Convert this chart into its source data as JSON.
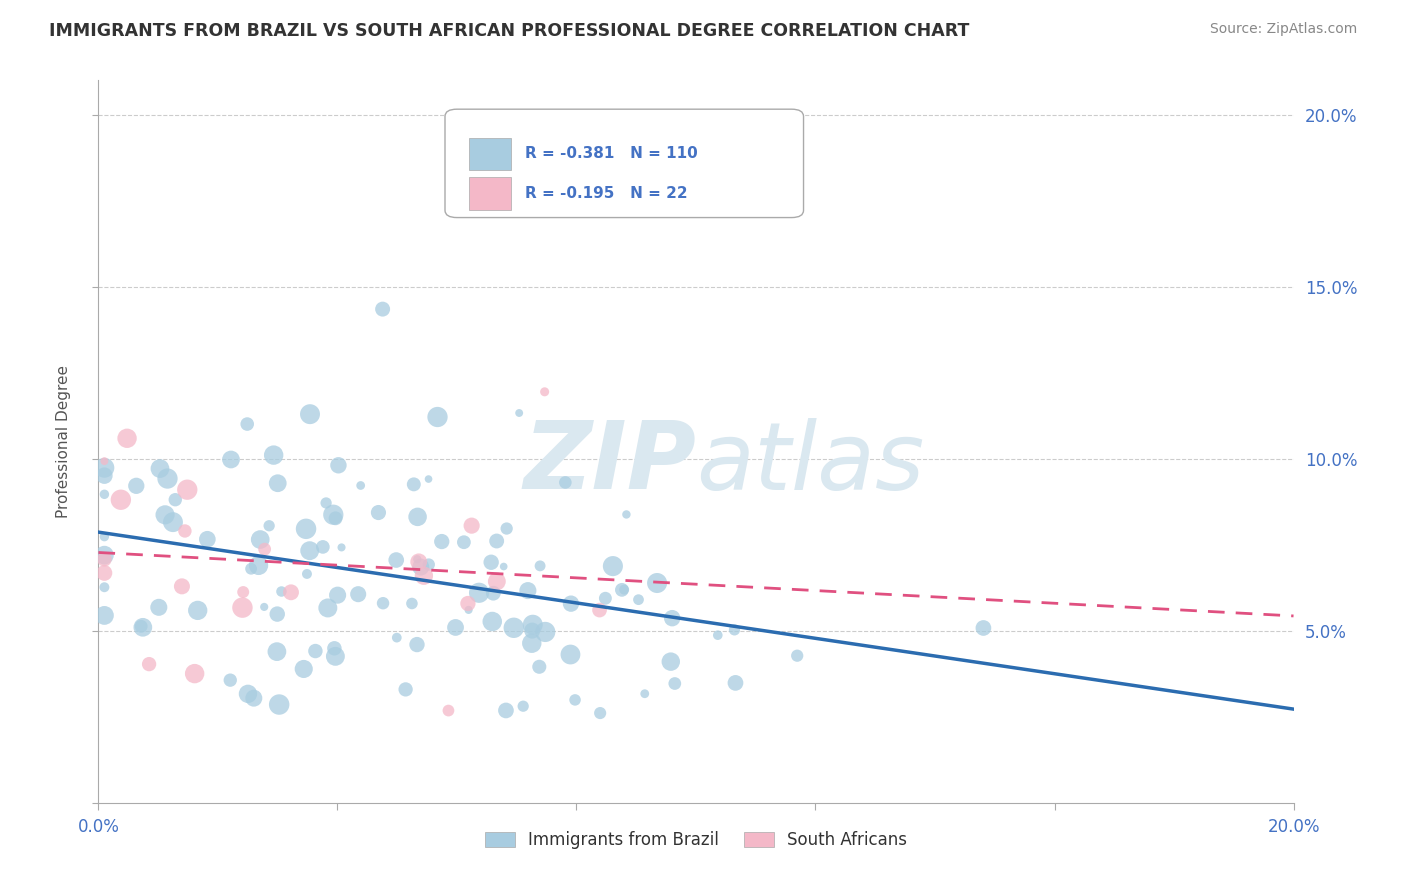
{
  "title": "IMMIGRANTS FROM BRAZIL VS SOUTH AFRICAN PROFESSIONAL DEGREE CORRELATION CHART",
  "source": "Source: ZipAtlas.com",
  "ylabel": "Professional Degree",
  "xlim": [
    0.0,
    0.2
  ],
  "ylim": [
    0.0,
    0.21
  ],
  "yticks": [
    0.0,
    0.05,
    0.1,
    0.15,
    0.2
  ],
  "ytick_labels": [
    "",
    "5.0%",
    "10.0%",
    "15.0%",
    "20.0%"
  ],
  "xticks": [
    0.0,
    0.04,
    0.08,
    0.12,
    0.16,
    0.2
  ],
  "xtick_labels": [
    "0.0%",
    "",
    "",
    "",
    "",
    "20.0%"
  ],
  "brazil_R": -0.381,
  "brazil_N": 110,
  "sa_R": -0.195,
  "sa_N": 22,
  "brazil_color": "#a8cce0",
  "sa_color": "#f4b8c8",
  "brazil_line_color": "#2b6cb0",
  "sa_line_color": "#e05080",
  "watermark_color": "#dae8f0",
  "legend_brazil": "Immigrants from Brazil",
  "legend_sa": "South Africans"
}
